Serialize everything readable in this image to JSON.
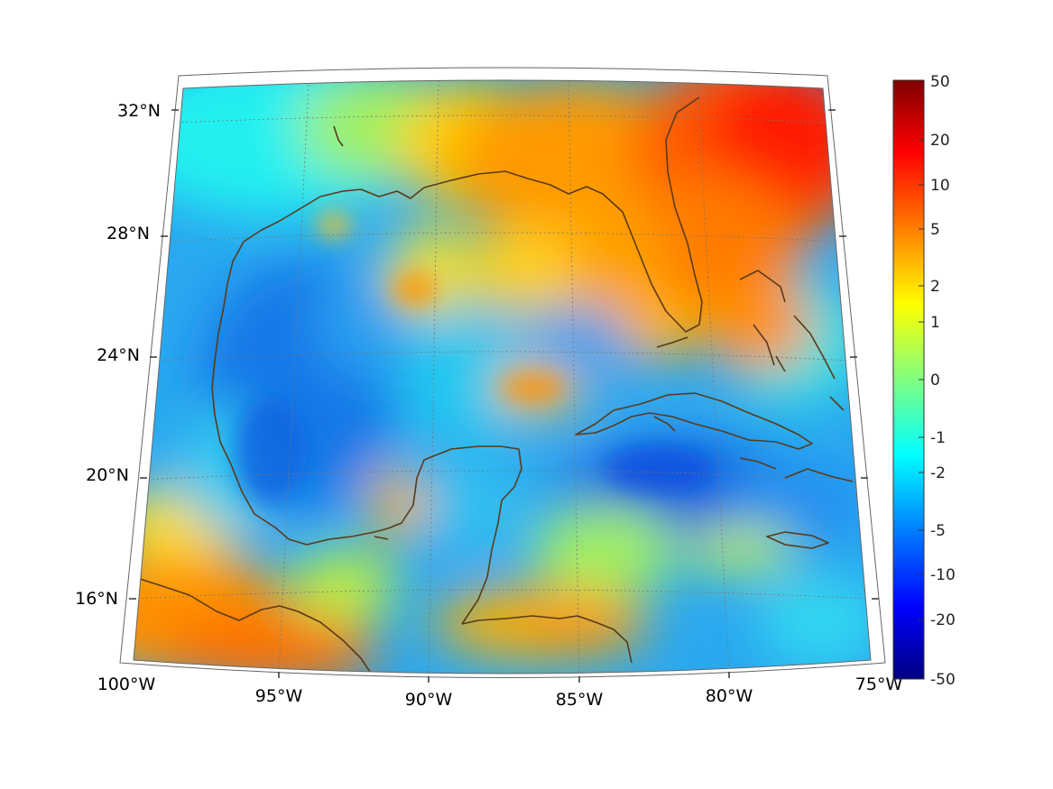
{
  "map": {
    "projection": "conic",
    "lon_labels": [
      "100°W",
      "95°W",
      "90°W",
      "85°W",
      "80°W",
      "75°W"
    ],
    "lat_labels": [
      "32°N",
      "28°N",
      "24°N",
      "20°N",
      "16°N"
    ],
    "colormap": "jet",
    "grid": true,
    "coastline_color": "#5a3a1a"
  },
  "colorbar": {
    "tick_labels": [
      "50",
      "20",
      "10",
      "5",
      "2",
      "1",
      "0",
      "-1",
      "-2",
      "-5",
      "-10",
      "-20",
      "-50"
    ],
    "scale": "symmetric-log",
    "range": [
      -50,
      50
    ]
  }
}
